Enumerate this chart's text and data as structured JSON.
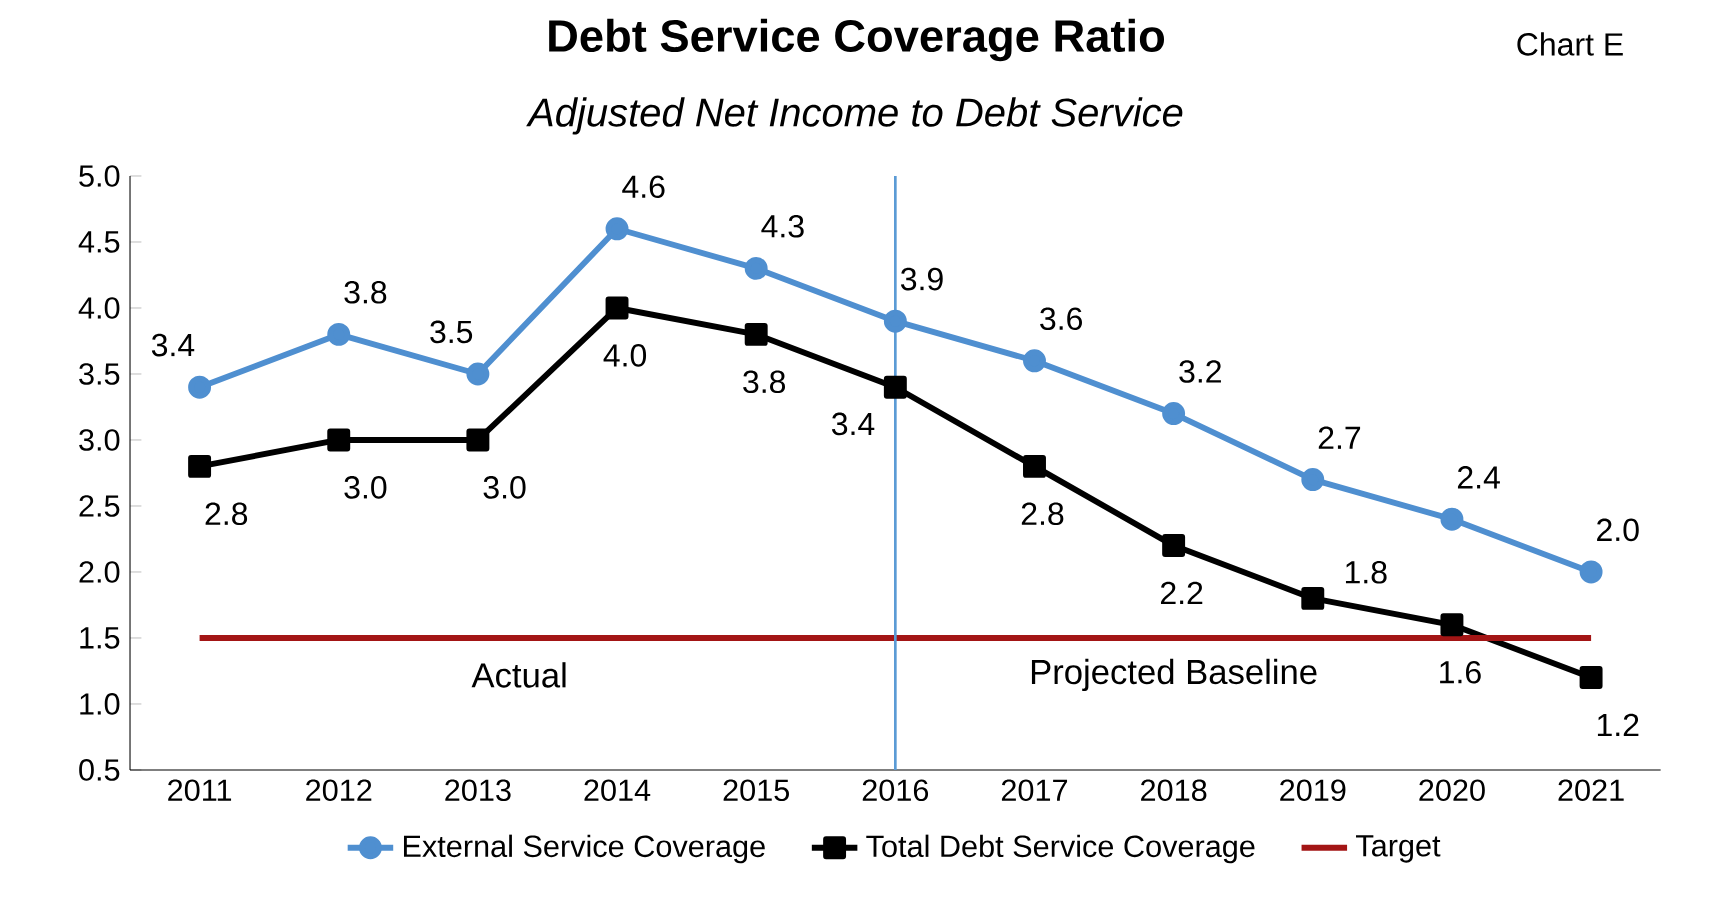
{
  "chart_data": {
    "type": "line",
    "title": "Debt Service Coverage Ratio",
    "subtitle": "*Adjusted Net Income to Debt Service*",
    "categories": [
      "2011",
      "2012",
      "2013",
      "2014",
      "2015",
      "2016",
      "2017",
      "2018",
      "2019",
      "2020",
      "2021"
    ],
    "series": [
      {
        "name": "External Service Coverage",
        "color": "#4f8fd0",
        "marker": "circle",
        "values": [
          3.4,
          3.8,
          3.5,
          4.6,
          4.3,
          3.9,
          3.6,
          3.2,
          2.7,
          2.4,
          2.0
        ],
        "value_labels": [
          "3.4",
          "3.8",
          "3.5",
          "4.6",
          "4.3",
          "3.9",
          "3.6",
          "3.2",
          "2.7",
          "2.4",
          "2.0"
        ]
      },
      {
        "name": "Total Debt Service Coverage",
        "color": "#000000",
        "marker": "square",
        "values": [
          2.8,
          3.0,
          3.0,
          4.0,
          3.8,
          3.4,
          2.8,
          2.2,
          1.8,
          1.6,
          1.2
        ],
        "value_labels": [
          "2.8",
          "3.0",
          "3.0",
          "4.0",
          "3.8",
          "3.4",
          "2.8",
          "2.2",
          "1.8",
          "1.6",
          "1.2"
        ]
      },
      {
        "name": "Target",
        "color": "#a31515",
        "marker": "none",
        "values": [
          1.5,
          1.5,
          1.5,
          1.5,
          1.5,
          1.5,
          1.5,
          1.5,
          1.5,
          1.5,
          1.5
        ]
      }
    ],
    "ylim": [
      0.5,
      5.0
    ],
    "yticks": [
      {
        "value": 0.5,
        "label": "0.5"
      },
      {
        "value": 1,
        "label": "1.0"
      },
      {
        "value": 1.5,
        "label": "1.5"
      },
      {
        "value": 2,
        "label": "2.0"
      },
      {
        "value": 2.5,
        "label": "2.5"
      },
      {
        "value": 3,
        "label": "3.0"
      },
      {
        "value": 3.5,
        "label": "3.5"
      },
      {
        "value": 4,
        "label": "4.0"
      },
      {
        "value": 4.5,
        "label": "4.5"
      },
      {
        "value": 5,
        "label": "5.0"
      }
    ],
    "ref_lines": [
      {
        "axis": "x",
        "value": "2016",
        "color": "#5b9bd5"
      }
    ],
    "annotations": [
      "Actual",
      "Projected Baseline",
      "Chart E"
    ],
    "legend": "bottom"
  }
}
